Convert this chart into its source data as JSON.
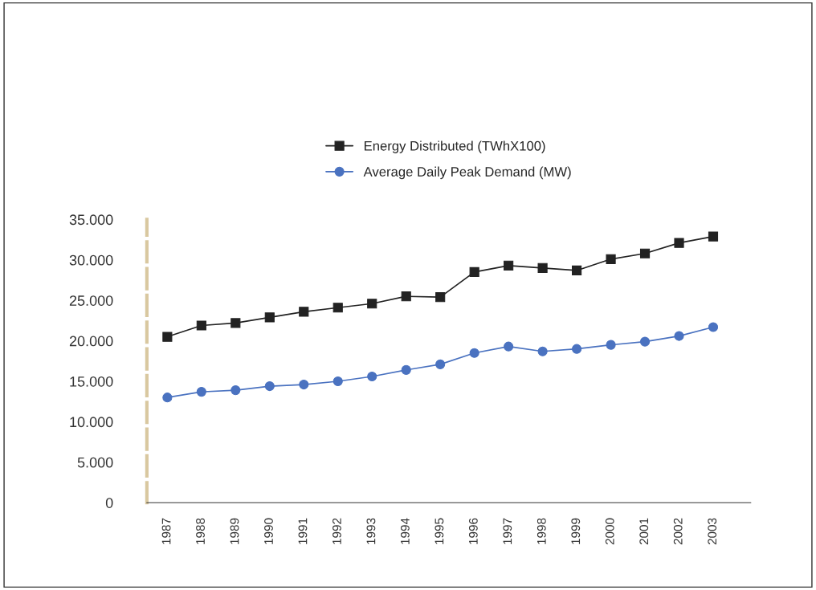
{
  "chart_data": {
    "type": "line",
    "categories": [
      "1987",
      "1988",
      "1989",
      "1990",
      "1991",
      "1992",
      "1993",
      "1994",
      "1995",
      "1996",
      "1997",
      "1998",
      "1999",
      "2000",
      "2001",
      "2002",
      "2003"
    ],
    "series": [
      {
        "name": "Energy Distributed (TWhX100)",
        "color": "#222222",
        "marker": "square",
        "values": [
          20500,
          21900,
          22200,
          22900,
          23600,
          24100,
          24600,
          25500,
          25400,
          28500,
          29300,
          29000,
          28700,
          30100,
          30800,
          32100,
          32900
        ]
      },
      {
        "name": "Average Daily Peak Demand (MW)",
        "color": "#4a72c0",
        "marker": "circle",
        "values": [
          13000,
          13700,
          13900,
          14400,
          14600,
          15000,
          15600,
          16400,
          17100,
          18500,
          19300,
          18700,
          19000,
          19500,
          19900,
          20600,
          21700
        ]
      }
    ],
    "ylim": [
      0,
      35000
    ],
    "yticks": [
      {
        "value": 0,
        "label": "0"
      },
      {
        "value": 5000,
        "label": "5.000"
      },
      {
        "value": 10000,
        "label": "10.000"
      },
      {
        "value": 15000,
        "label": "15.000"
      },
      {
        "value": 20000,
        "label": "20.000"
      },
      {
        "value": 25000,
        "label": "25.000"
      },
      {
        "value": 30000,
        "label": "30.000"
      },
      {
        "value": 35000,
        "label": "35.000"
      }
    ],
    "legend": "top",
    "grid": false,
    "line_style": "solid"
  }
}
